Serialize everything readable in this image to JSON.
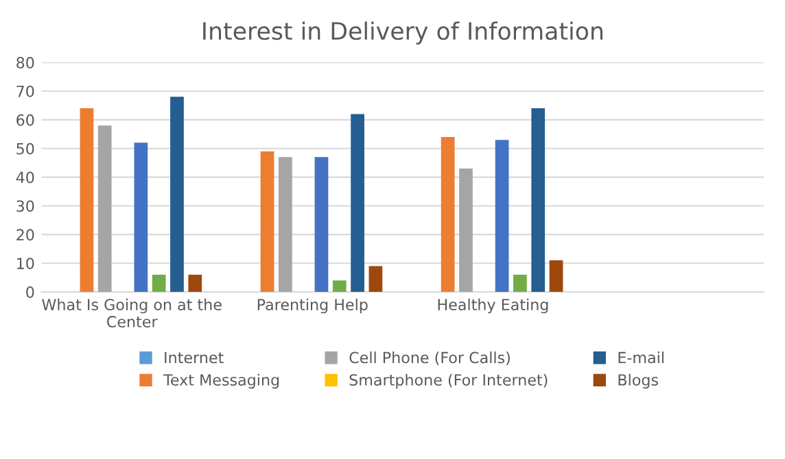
{
  "chart_data": {
    "type": "bar",
    "title": "Interest in Delivery of Information",
    "categories": [
      "What Is Going on at the Center",
      "Parenting Help",
      "Healthy Eating",
      null
    ],
    "series": [
      {
        "name": "Internet",
        "color": "#5b9bd5",
        "values": [
          null,
          null,
          null,
          null
        ]
      },
      {
        "name": "Text Messaging",
        "color": "#ed7d31",
        "values": [
          64,
          49,
          54,
          null
        ]
      },
      {
        "name": "Cell Phone (For Calls)",
        "color": "#a5a5a5",
        "values": [
          58,
          47,
          43,
          null
        ]
      },
      {
        "name": "Smartphone (For Internet)",
        "color": "#ffc000",
        "values": [
          null,
          null,
          null,
          null
        ]
      },
      {
        "color": "#4472c4",
        "values": [
          52,
          47,
          53,
          null
        ]
      },
      {
        "color": "#70ad47",
        "values": [
          6,
          4,
          6,
          null
        ]
      },
      {
        "name": "E-mail",
        "color": "#255e91",
        "values": [
          68,
          62,
          64,
          null
        ]
      },
      {
        "name": "Blogs",
        "color": "#9e480e",
        "values": [
          6,
          9,
          11,
          null
        ]
      }
    ],
    "ylim": [
      0,
      80
    ],
    "yticks": [
      0,
      10,
      20,
      30,
      40,
      50,
      60,
      70,
      80
    ],
    "grid": "y",
    "legend": "bottom"
  }
}
